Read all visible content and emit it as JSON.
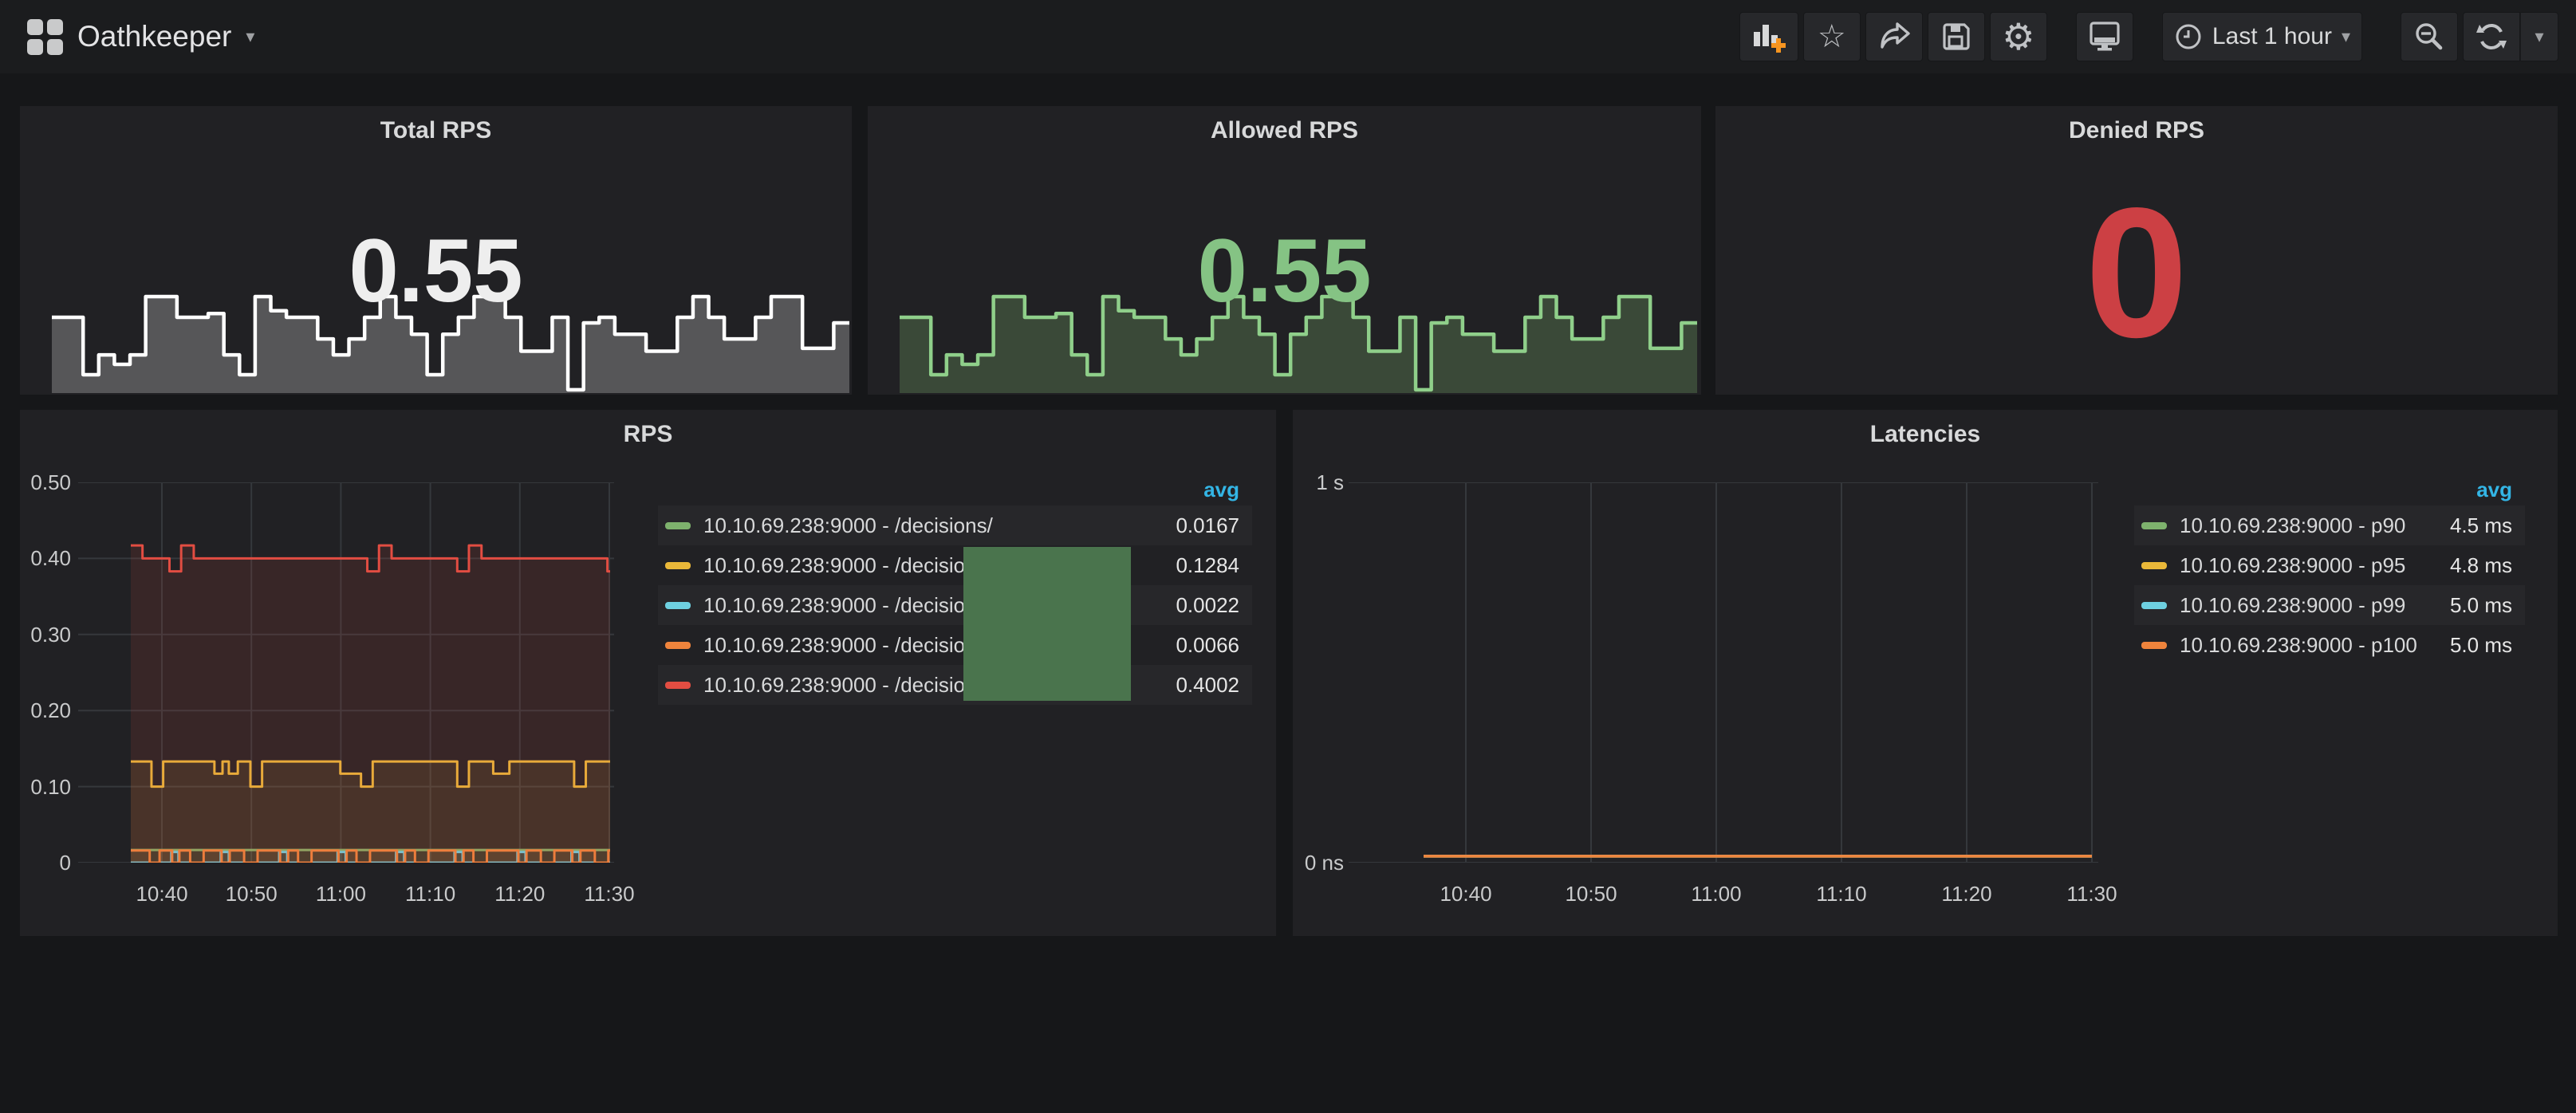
{
  "navbar": {
    "title": "Oathkeeper",
    "time_range_label": "Last 1 hour"
  },
  "legend": {
    "avg_label": "avg"
  },
  "panels": {
    "total_rps": {
      "title": "Total RPS",
      "value": "0.55",
      "value_color": "#eeeeee"
    },
    "allowed_rps": {
      "title": "Allowed RPS",
      "value": "0.55",
      "value_color": "#85c384"
    },
    "denied_rps": {
      "title": "Denied RPS",
      "value": "0",
      "value_color": "#cc4044"
    },
    "rps": {
      "title": "RPS"
    },
    "latencies": {
      "title": "Latencies"
    }
  },
  "chart_data": [
    {
      "id": "total_rps_sparkline",
      "type": "area",
      "title": "Total RPS",
      "current": "0.55",
      "line_color": "#ffffff",
      "fill_color": "rgba(255,255,255,0.24)",
      "values": [
        0.78,
        0.78,
        0.17,
        0.38,
        0.28,
        0.38,
        1.0,
        1.0,
        0.78,
        0.78,
        0.82,
        0.38,
        0.17,
        1.0,
        0.85,
        0.78,
        0.78,
        0.55,
        0.38,
        0.55,
        0.78,
        1.0,
        0.78,
        0.6,
        0.17,
        0.6,
        0.78,
        1.0,
        1.0,
        0.78,
        0.42,
        0.42,
        0.78,
        0.01,
        0.72,
        0.78,
        0.6,
        0.6,
        0.42,
        0.42,
        0.78,
        1.0,
        0.78,
        0.55,
        0.55,
        0.78,
        1.0,
        1.0,
        0.45,
        0.45,
        0.72,
        0.72
      ]
    },
    {
      "id": "allowed_rps_sparkline",
      "type": "area",
      "title": "Allowed RPS",
      "current": "0.55",
      "line_color": "#8fcf8a",
      "fill_color": "rgba(126,178,109,0.28)",
      "values": [
        0.78,
        0.78,
        0.17,
        0.38,
        0.28,
        0.38,
        1.0,
        1.0,
        0.78,
        0.78,
        0.82,
        0.38,
        0.17,
        1.0,
        0.85,
        0.78,
        0.78,
        0.55,
        0.38,
        0.55,
        0.78,
        1.0,
        0.78,
        0.6,
        0.17,
        0.6,
        0.78,
        1.0,
        1.0,
        0.78,
        0.42,
        0.42,
        0.78,
        0.01,
        0.72,
        0.78,
        0.6,
        0.6,
        0.42,
        0.42,
        0.78,
        1.0,
        0.78,
        0.55,
        0.55,
        0.78,
        1.0,
        1.0,
        0.45,
        0.45,
        0.72,
        0.72
      ]
    },
    {
      "id": "rps",
      "type": "line",
      "title": "RPS",
      "y_ticks": [
        "0.50",
        "0.40",
        "0.30",
        "0.20",
        "0.10",
        "0"
      ],
      "x_ticks": [
        "10:40",
        "10:50",
        "11:00",
        "11:10",
        "11:20",
        "11:30"
      ],
      "ylim": [
        0,
        0.5
      ],
      "legend_position": "right",
      "series": [
        {
          "label": "10.10.69.238:9000 - /decisions/",
          "color": "#7EB26D",
          "avg": "0.0167",
          "fill": 0.1,
          "points": [
            [
              3.7,
              0.0167
            ],
            [
              57,
              0.0167
            ]
          ]
        },
        {
          "label": "10.10.69.238:9000 - /decisions/",
          "color": "#EAB839",
          "avg": "0.1284",
          "fill": 0.1,
          "points": [
            [
              3.7,
              0.133
            ],
            [
              5.5,
              0.133
            ],
            [
              6,
              0.1
            ],
            [
              6.8,
              0.1
            ],
            [
              7.3,
              0.133
            ],
            [
              12.5,
              0.133
            ],
            [
              13,
              0.117
            ],
            [
              13.6,
              0.117
            ],
            [
              13.9,
              0.133
            ],
            [
              14.3,
              0.133
            ],
            [
              14.6,
              0.117
            ],
            [
              15.2,
              0.117
            ],
            [
              15.6,
              0.133
            ],
            [
              16.5,
              0.133
            ],
            [
              17,
              0.1
            ],
            [
              17.8,
              0.1
            ],
            [
              18.3,
              0.133
            ],
            [
              26.5,
              0.133
            ],
            [
              27,
              0.117
            ],
            [
              28.8,
              0.117
            ],
            [
              29.3,
              0.1
            ],
            [
              30.1,
              0.1
            ],
            [
              30.6,
              0.133
            ],
            [
              39.5,
              0.133
            ],
            [
              40,
              0.1
            ],
            [
              40.8,
              0.1
            ],
            [
              41.3,
              0.133
            ],
            [
              43.5,
              0.133
            ],
            [
              44,
              0.117
            ],
            [
              45.3,
              0.117
            ],
            [
              45.8,
              0.133
            ],
            [
              52.5,
              0.133
            ],
            [
              53,
              0.1
            ],
            [
              53.8,
              0.1
            ],
            [
              54.3,
              0.133
            ],
            [
              57,
              0.133
            ]
          ]
        },
        {
          "label": "10.10.69.238:9000 - /decisions/",
          "color": "#6ED0E0",
          "avg": "0.0022",
          "fill": 0.1,
          "points": [
            [
              3.7,
              0
            ],
            [
              7.9,
              0
            ],
            [
              8.2,
              0.014
            ],
            [
              8.7,
              0.014
            ],
            [
              9,
              0
            ],
            [
              13.4,
              0
            ],
            [
              13.7,
              0.014
            ],
            [
              14.3,
              0.014
            ],
            [
              14.6,
              0
            ],
            [
              19.9,
              0
            ],
            [
              20.2,
              0.014
            ],
            [
              20.8,
              0.014
            ],
            [
              21.1,
              0
            ],
            [
              26.4,
              0
            ],
            [
              26.7,
              0.014
            ],
            [
              27.3,
              0.014
            ],
            [
              27.6,
              0
            ],
            [
              32.9,
              0
            ],
            [
              33.2,
              0.014
            ],
            [
              33.8,
              0.014
            ],
            [
              34.1,
              0
            ],
            [
              39.4,
              0
            ],
            [
              39.7,
              0.014
            ],
            [
              40.3,
              0.014
            ],
            [
              40.6,
              0
            ],
            [
              46.4,
              0
            ],
            [
              46.7,
              0.014
            ],
            [
              47.3,
              0.014
            ],
            [
              47.6,
              0
            ],
            [
              52.4,
              0
            ],
            [
              52.7,
              0.014
            ],
            [
              53.3,
              0.014
            ],
            [
              53.6,
              0
            ],
            [
              57,
              0
            ]
          ]
        },
        {
          "label": "10.10.69.238:9000 - /decisions/",
          "color": "#EF843C",
          "avg": "0.0066",
          "fill": 0.1,
          "points": [
            [
              3.7,
              0.016
            ],
            [
              5.3,
              0.016
            ],
            [
              5.8,
              0
            ],
            [
              6.4,
              0
            ],
            [
              6.9,
              0.016
            ],
            [
              7.8,
              0.016
            ],
            [
              8.3,
              0
            ],
            [
              8.6,
              0
            ],
            [
              9.1,
              0.016
            ],
            [
              9.8,
              0.016
            ],
            [
              10.3,
              0
            ],
            [
              11.3,
              0
            ],
            [
              11.8,
              0.016
            ],
            [
              13.3,
              0.016
            ],
            [
              13.8,
              0
            ],
            [
              14.2,
              0
            ],
            [
              14.7,
              0.016
            ],
            [
              15.8,
              0.016
            ],
            [
              16.3,
              0
            ],
            [
              17.3,
              0
            ],
            [
              17.8,
              0.016
            ],
            [
              19.8,
              0.016
            ],
            [
              20.3,
              0
            ],
            [
              20.7,
              0
            ],
            [
              21.2,
              0.016
            ],
            [
              21.8,
              0.016
            ],
            [
              22.3,
              0
            ],
            [
              23.3,
              0
            ],
            [
              23.8,
              0.016
            ],
            [
              26.3,
              0.016
            ],
            [
              26.8,
              0
            ],
            [
              27.2,
              0
            ],
            [
              27.7,
              0.016
            ],
            [
              28.3,
              0.016
            ],
            [
              28.8,
              0
            ],
            [
              29.8,
              0
            ],
            [
              30.3,
              0.016
            ],
            [
              32.8,
              0.016
            ],
            [
              33.3,
              0
            ],
            [
              33.7,
              0
            ],
            [
              34.2,
              0.016
            ],
            [
              34.8,
              0.016
            ],
            [
              35.3,
              0
            ],
            [
              36.3,
              0
            ],
            [
              36.8,
              0.016
            ],
            [
              39.3,
              0.016
            ],
            [
              39.8,
              0
            ],
            [
              40.2,
              0
            ],
            [
              40.7,
              0.016
            ],
            [
              41.3,
              0.016
            ],
            [
              41.8,
              0
            ],
            [
              42.8,
              0
            ],
            [
              43.3,
              0.016
            ],
            [
              46.3,
              0.016
            ],
            [
              46.8,
              0
            ],
            [
              47.2,
              0
            ],
            [
              47.7,
              0.016
            ],
            [
              48.8,
              0.016
            ],
            [
              49.3,
              0
            ],
            [
              50.3,
              0
            ],
            [
              50.8,
              0.016
            ],
            [
              52.3,
              0.016
            ],
            [
              52.8,
              0
            ],
            [
              53.2,
              0
            ],
            [
              53.7,
              0.016
            ],
            [
              54.8,
              0.016
            ],
            [
              55.3,
              0
            ],
            [
              56.3,
              0
            ],
            [
              56.8,
              0.016
            ],
            [
              57,
              0.016
            ]
          ]
        },
        {
          "label": "10.10.69.238:9000 - /decisions/",
          "color": "#E24D42",
          "avg": "0.4002",
          "fill": 0.12,
          "points": [
            [
              3.7,
              0.417
            ],
            [
              4.5,
              0.417
            ],
            [
              5,
              0.4
            ],
            [
              7.5,
              0.4
            ],
            [
              8,
              0.383
            ],
            [
              8.8,
              0.383
            ],
            [
              9.3,
              0.417
            ],
            [
              10.2,
              0.417
            ],
            [
              10.7,
              0.4
            ],
            [
              29.5,
              0.4
            ],
            [
              30,
              0.383
            ],
            [
              30.8,
              0.383
            ],
            [
              31.3,
              0.417
            ],
            [
              32.2,
              0.417
            ],
            [
              32.7,
              0.4
            ],
            [
              39.5,
              0.4
            ],
            [
              40,
              0.383
            ],
            [
              40.8,
              0.383
            ],
            [
              41.3,
              0.417
            ],
            [
              42.2,
              0.417
            ],
            [
              42.7,
              0.4
            ],
            [
              56.2,
              0.4
            ],
            [
              56.7,
              0.383
            ],
            [
              57,
              0.383
            ]
          ]
        }
      ]
    },
    {
      "id": "latencies",
      "type": "line",
      "title": "Latencies",
      "y_ticks": [
        "1 s",
        "0 ns"
      ],
      "x_ticks": [
        "10:40",
        "10:50",
        "11:00",
        "11:10",
        "11:20",
        "11:30"
      ],
      "ylim": [
        0,
        1
      ],
      "legend_position": "right",
      "series": [
        {
          "label": "10.10.69.238:9000 - p90",
          "color": "#7EB26D",
          "avg": "4.5 ms",
          "fill": 0,
          "points": [
            [
              0,
              0.017
            ],
            [
              60,
              0.017
            ]
          ]
        },
        {
          "label": "10.10.69.238:9000 - p95",
          "color": "#EAB839",
          "avg": "4.8 ms",
          "fill": 0,
          "points": [
            [
              0,
              0.017
            ],
            [
              60,
              0.017
            ]
          ]
        },
        {
          "label": "10.10.69.238:9000 - p99",
          "color": "#6ED0E0",
          "avg": "5.0 ms",
          "fill": 0,
          "points": [
            [
              0,
              0.017
            ],
            [
              60,
              0.017
            ]
          ]
        },
        {
          "label": "10.10.69.238:9000 - p100",
          "color": "#EF843C",
          "avg": "5.0 ms",
          "fill": 0,
          "points": [
            [
              0,
              0.017
            ],
            [
              60,
              0.017
            ]
          ]
        }
      ]
    }
  ]
}
